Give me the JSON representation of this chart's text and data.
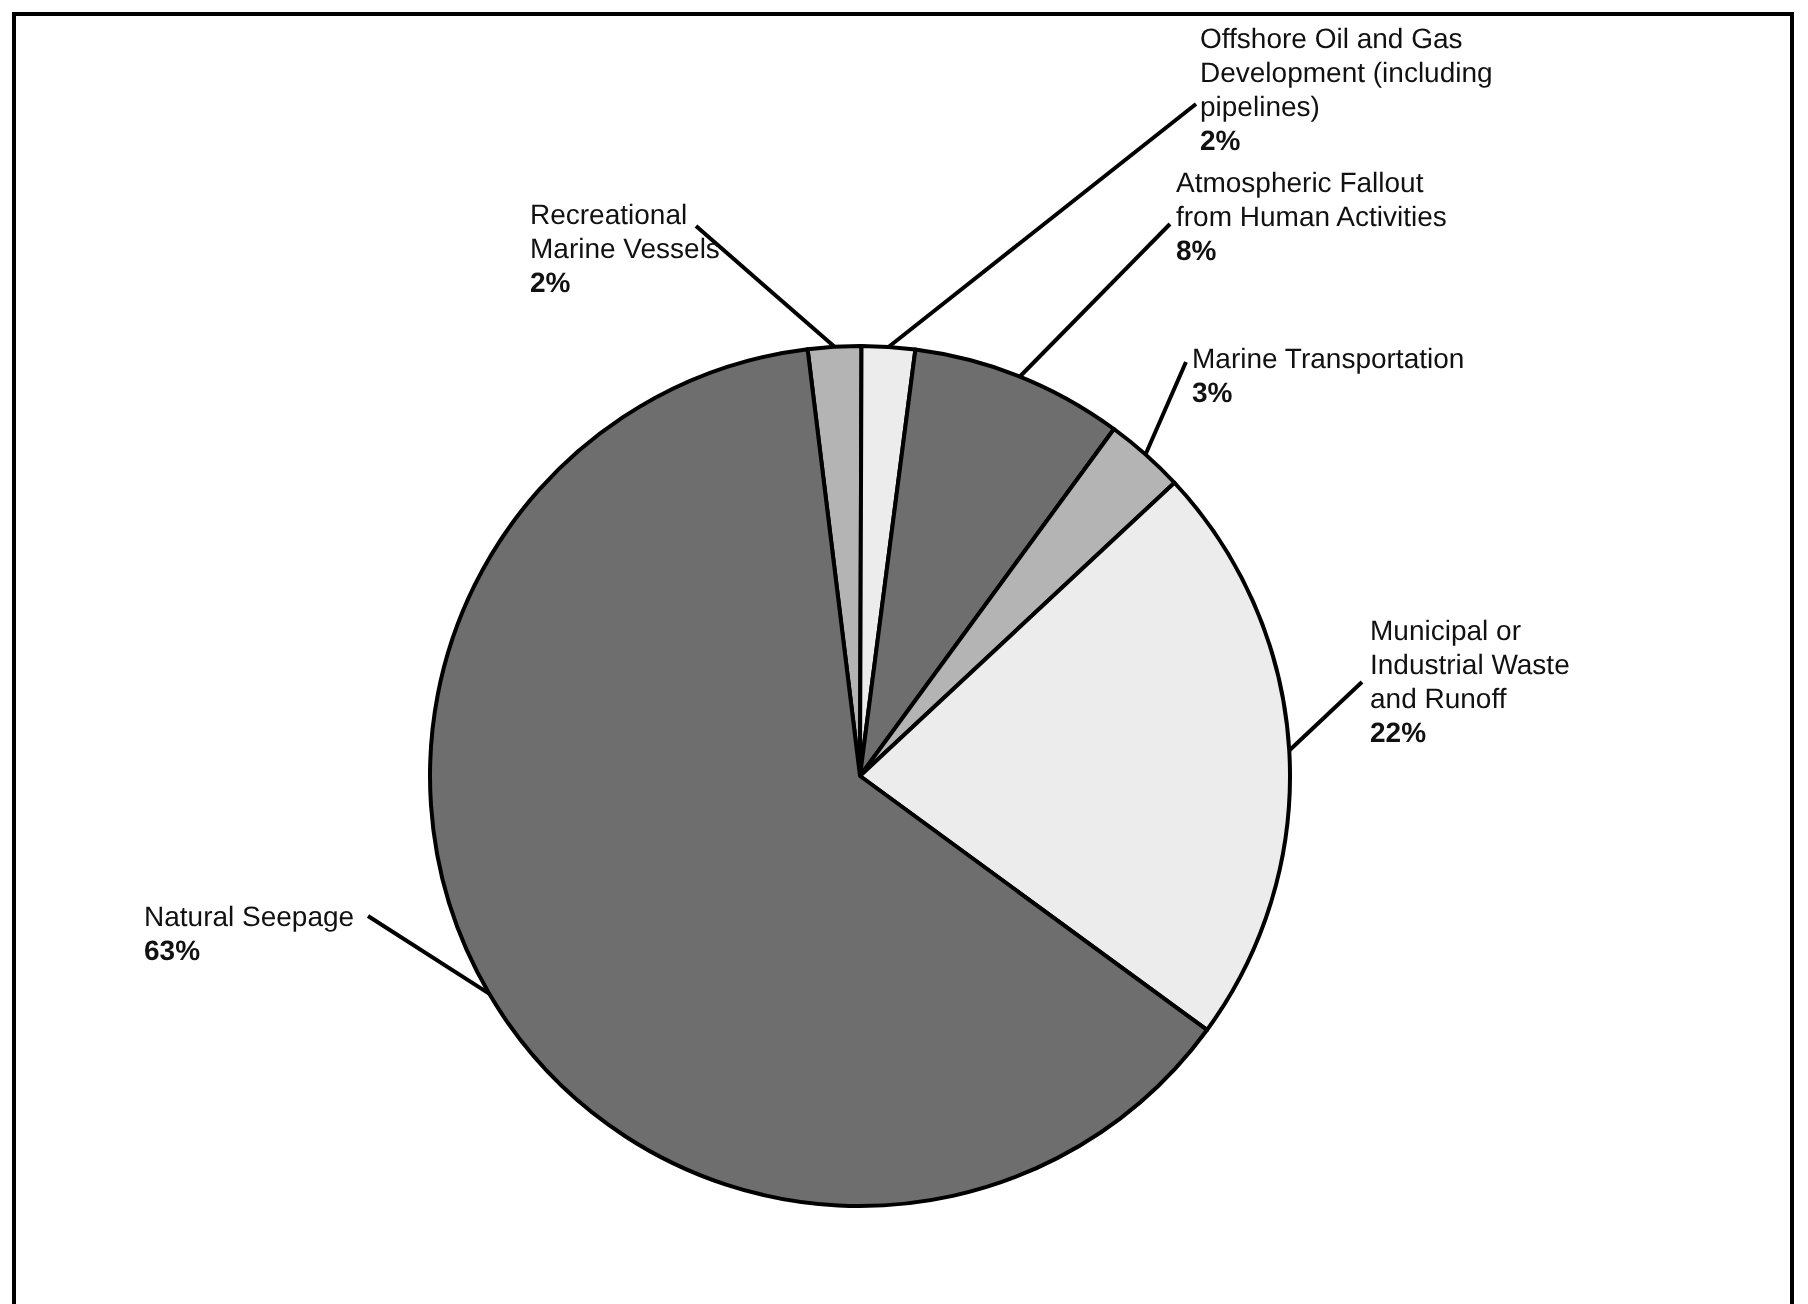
{
  "chart_data": {
    "type": "pie",
    "categories": [
      "Recreational Marine Vessels",
      "Offshore Oil and Gas Development (including pipelines)",
      "Atmospheric Fallout from Human Activities",
      "Marine Transportation",
      "Municipal or Industrial Waste and Runoff",
      "Natural Seepage"
    ],
    "values": [
      2,
      2,
      8,
      3,
      22,
      63
    ],
    "value_labels": [
      "2%",
      "2%",
      "8%",
      "3%",
      "22%",
      "63%"
    ],
    "colors": [
      "#b4b4b4",
      "#ececec",
      "#6e6e6e",
      "#b4b4b4",
      "#ececec",
      "#6e6e6e"
    ]
  }
}
